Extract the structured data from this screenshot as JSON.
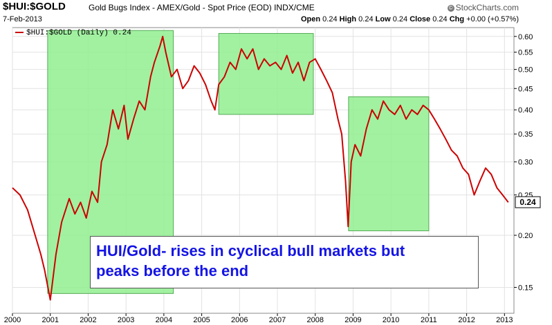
{
  "header": {
    "symbol": "$HUI:$GOLD",
    "description": "Gold Bugs Index - AMEX/Gold - Spot Price (EOD)  INDX/CME",
    "date": "7-Feb-2013",
    "brand": "StockCharts.com",
    "brand_icon": "copyright-icon",
    "quote": {
      "open_label": "Open",
      "open": "0.24",
      "high_label": "High",
      "high": "0.24",
      "low_label": "Low",
      "low": "0.24",
      "close_label": "Close",
      "close": "0.24",
      "chg_label": "Chg",
      "chg": "+0.00 (+0.57%)"
    }
  },
  "legend": "$HUI:$GOLD (Daily) 0.24",
  "annotation": {
    "line1": "HUI/Gold- rises in cyclical bull markets but",
    "line2": "peaks before the end"
  },
  "last_value_label": "0.24",
  "colors": {
    "line": "#cc0000",
    "highlight": "#90ee90",
    "text": "#1414e6"
  },
  "chart_data": {
    "type": "line",
    "yscale": "log",
    "ylim": [
      0.13,
      0.63
    ],
    "xlim": [
      2000.0,
      2013.25
    ],
    "yticks": [
      0.15,
      0.2,
      0.25,
      0.3,
      0.35,
      0.4,
      0.45,
      0.5,
      0.55,
      0.6
    ],
    "ytick_labels": [
      "0.15",
      "0.20",
      "0.25",
      "0.30",
      "0.35",
      "0.40",
      "0.45",
      "0.50",
      "0.55",
      "0.60"
    ],
    "xticks": [
      2000,
      2001,
      2002,
      2003,
      2004,
      2005,
      2006,
      2007,
      2008,
      2009,
      2010,
      2011,
      2012,
      2013
    ],
    "xtick_labels": [
      "2000",
      "2001",
      "2002",
      "2003",
      "2004",
      "2005",
      "2006",
      "2007",
      "2008",
      "2009",
      "2010",
      "2011",
      "2012",
      "2013"
    ],
    "grid": true,
    "series": [
      {
        "name": "$HUI:$GOLD (Daily)",
        "x": [
          2000.0,
          2000.2,
          2000.4,
          2000.6,
          2000.75,
          2000.85,
          2001.0,
          2001.15,
          2001.3,
          2001.5,
          2001.65,
          2001.8,
          2001.95,
          2002.1,
          2002.25,
          2002.35,
          2002.5,
          2002.65,
          2002.8,
          2002.95,
          2003.05,
          2003.2,
          2003.35,
          2003.5,
          2003.65,
          2003.75,
          2003.9,
          2003.97,
          2004.05,
          2004.2,
          2004.35,
          2004.5,
          2004.65,
          2004.8,
          2004.95,
          2005.1,
          2005.25,
          2005.35,
          2005.45,
          2005.6,
          2005.75,
          2005.9,
          2006.05,
          2006.2,
          2006.35,
          2006.5,
          2006.65,
          2006.8,
          2006.95,
          2007.1,
          2007.25,
          2007.4,
          2007.55,
          2007.7,
          2007.85,
          2008.0,
          2008.15,
          2008.3,
          2008.45,
          2008.6,
          2008.7,
          2008.8,
          2008.87,
          2008.95,
          2009.05,
          2009.2,
          2009.35,
          2009.5,
          2009.65,
          2009.8,
          2009.95,
          2010.1,
          2010.25,
          2010.4,
          2010.55,
          2010.7,
          2010.85,
          2011.0,
          2011.15,
          2011.3,
          2011.45,
          2011.6,
          2011.75,
          2011.9,
          2012.05,
          2012.2,
          2012.35,
          2012.5,
          2012.65,
          2012.8,
          2012.95,
          2013.1
        ],
        "y": [
          0.26,
          0.25,
          0.23,
          0.2,
          0.18,
          0.165,
          0.14,
          0.18,
          0.215,
          0.245,
          0.225,
          0.24,
          0.22,
          0.255,
          0.24,
          0.3,
          0.33,
          0.4,
          0.36,
          0.41,
          0.34,
          0.38,
          0.42,
          0.4,
          0.48,
          0.52,
          0.57,
          0.6,
          0.55,
          0.48,
          0.5,
          0.45,
          0.47,
          0.51,
          0.49,
          0.46,
          0.42,
          0.4,
          0.46,
          0.48,
          0.52,
          0.5,
          0.56,
          0.53,
          0.56,
          0.5,
          0.53,
          0.51,
          0.52,
          0.5,
          0.54,
          0.49,
          0.52,
          0.47,
          0.52,
          0.53,
          0.5,
          0.47,
          0.44,
          0.38,
          0.35,
          0.27,
          0.21,
          0.3,
          0.33,
          0.31,
          0.36,
          0.4,
          0.38,
          0.42,
          0.4,
          0.39,
          0.41,
          0.38,
          0.4,
          0.39,
          0.41,
          0.4,
          0.38,
          0.36,
          0.34,
          0.32,
          0.31,
          0.29,
          0.28,
          0.25,
          0.27,
          0.29,
          0.28,
          0.26,
          0.25,
          0.24
        ]
      }
    ],
    "highlights": [
      {
        "x_start": 2000.93,
        "x_end": 2004.25,
        "y_low": 0.145,
        "y_high": 0.62
      },
      {
        "x_start": 2005.45,
        "x_end": 2007.95,
        "y_low": 0.39,
        "y_high": 0.61
      },
      {
        "x_start": 2008.88,
        "x_end": 2011.0,
        "y_low": 0.205,
        "y_high": 0.43
      }
    ]
  }
}
